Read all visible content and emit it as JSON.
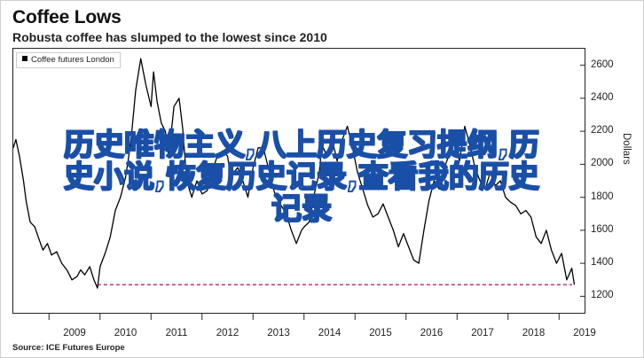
{
  "header": {
    "title": "Coffee Lows",
    "subtitle": "Robusta coffee has slumped to the lowest since 2010"
  },
  "source": "Source: ICE Futures Europe",
  "overlay_lines": [
    "历史唯物主义,八上历史复习提纲,历",
    "史小说,恢复历史记录,查看我的历史",
    "记录"
  ],
  "colors": {
    "line": "#000000",
    "reference_line": "#c0407a",
    "overlay_stroke": "#1a4fa8"
  },
  "chart_data": {
    "type": "line",
    "title": "Coffee Lows",
    "subtitle": "Robusta coffee has slumped to the lowest since 2010",
    "ylabel": "Dollars",
    "ylim": [
      1100,
      2700
    ],
    "xlim": [
      2008.3,
      2019.5
    ],
    "x_ticks": [
      "2009",
      "2010",
      "2011",
      "2012",
      "2013",
      "2014",
      "2015",
      "2016",
      "2017",
      "2018",
      "2019"
    ],
    "y_ticks": [
      "1200",
      "1400",
      "1600",
      "1800",
      "2000",
      "2200",
      "2400",
      "2600"
    ],
    "legend": [
      "Coffee futures London"
    ],
    "legend_position": "top-left",
    "grid": false,
    "reference_line": {
      "value": 1270,
      "style": "dashed",
      "from_x": 2009.95
    },
    "series": [
      {
        "name": "Coffee futures London",
        "x": [
          2008.3,
          2008.35,
          2008.42,
          2008.5,
          2008.55,
          2008.63,
          2008.72,
          2008.8,
          2008.88,
          2008.97,
          2009.05,
          2009.15,
          2009.25,
          2009.35,
          2009.45,
          2009.55,
          2009.62,
          2009.7,
          2009.8,
          2009.88,
          2009.95,
          2010.0,
          2010.1,
          2010.2,
          2010.3,
          2010.4,
          2010.5,
          2010.6,
          2010.7,
          2010.8,
          2010.9,
          2011.0,
          2011.05,
          2011.12,
          2011.2,
          2011.28,
          2011.35,
          2011.45,
          2011.55,
          2011.62,
          2011.7,
          2011.8,
          2011.9,
          2012.0,
          2012.1,
          2012.2,
          2012.3,
          2012.4,
          2012.5,
          2012.55,
          2012.62,
          2012.7,
          2012.8,
          2012.9,
          2013.0,
          2013.1,
          2013.2,
          2013.3,
          2013.4,
          2013.45,
          2013.55,
          2013.65,
          2013.75,
          2013.85,
          2013.95,
          2014.0,
          2014.1,
          2014.2,
          2014.3,
          2014.35,
          2014.45,
          2014.55,
          2014.65,
          2014.75,
          2014.85,
          2014.95,
          2015.05,
          2015.15,
          2015.25,
          2015.35,
          2015.45,
          2015.55,
          2015.65,
          2015.75,
          2015.85,
          2015.95,
          2016.05,
          2016.15,
          2016.25,
          2016.35,
          2016.45,
          2016.55,
          2016.65,
          2016.75,
          2016.85,
          2016.95,
          2017.05,
          2017.15,
          2017.25,
          2017.35,
          2017.45,
          2017.55,
          2017.65,
          2017.75,
          2017.85,
          2017.95,
          2018.05,
          2018.15,
          2018.25,
          2018.35,
          2018.45,
          2018.55,
          2018.65,
          2018.75,
          2018.85,
          2018.95,
          2019.05,
          2019.15,
          2019.25,
          2019.3
        ],
        "y": [
          2100,
          2150,
          2050,
          1900,
          1780,
          1650,
          1620,
          1550,
          1480,
          1520,
          1450,
          1470,
          1400,
          1360,
          1300,
          1320,
          1360,
          1330,
          1380,
          1300,
          1250,
          1380,
          1460,
          1560,
          1720,
          1800,
          1920,
          2120,
          2450,
          2640,
          2480,
          2350,
          2560,
          2380,
          2250,
          2200,
          2050,
          2350,
          2400,
          2220,
          1900,
          1800,
          1900,
          1820,
          1840,
          1960,
          2050,
          2080,
          2050,
          1950,
          1950,
          1980,
          1900,
          1800,
          1980,
          2100,
          2100,
          1980,
          1850,
          1800,
          1750,
          1700,
          1600,
          1520,
          1600,
          1620,
          1650,
          1820,
          1950,
          2120,
          2050,
          2150,
          2020,
          2150,
          2230,
          2100,
          1950,
          1850,
          1750,
          1680,
          1700,
          1760,
          1680,
          1600,
          1500,
          1580,
          1500,
          1420,
          1400,
          1600,
          1780,
          1900,
          1850,
          1980,
          2060,
          2140,
          2020,
          2230,
          2120,
          1980,
          1900,
          1850,
          1950,
          1870,
          1900,
          1800,
          1770,
          1750,
          1700,
          1720,
          1680,
          1560,
          1520,
          1600,
          1480,
          1400,
          1460,
          1300,
          1370,
          1270
        ]
      }
    ]
  }
}
